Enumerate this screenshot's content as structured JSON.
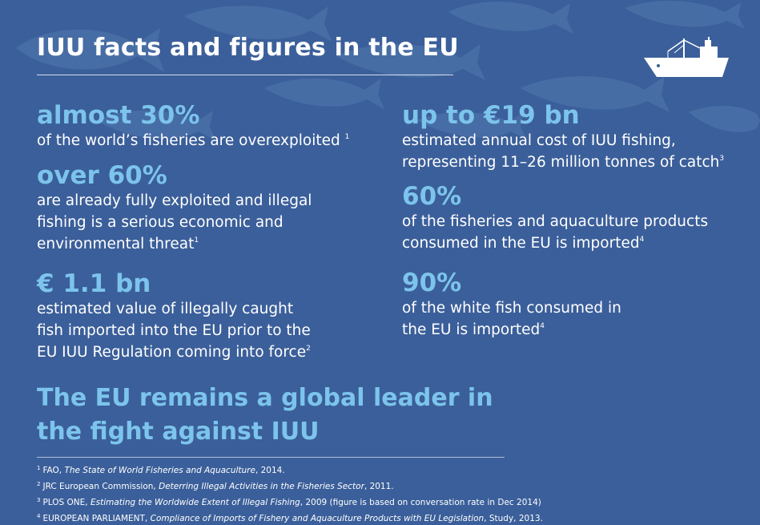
{
  "title": "IUU facts and figures in the EU",
  "colors": {
    "background": "#3b5f9a",
    "accent": "#7cc4ec",
    "text": "#ffffff"
  },
  "left_facts": [
    {
      "value": "almost 30%",
      "text": "of the world’s fisheries are overexploited",
      "ref": "1"
    },
    {
      "value": "over 60%",
      "text_lines": [
        "are already fully exploited and illegal",
        "fishing is a serious economic and",
        "environmental threat"
      ],
      "ref": "1"
    },
    {
      "value": "€ 1.1 bn",
      "text_lines": [
        "estimated value of illegally caught",
        "fish imported into the EU prior to the",
        "EU IUU Regulation coming into force"
      ],
      "ref": "2"
    }
  ],
  "right_facts": [
    {
      "value": "up to €19 bn",
      "text_lines": [
        "estimated annual cost of IUU fishing,",
        "representing 11–26 million tonnes of catch"
      ],
      "ref": "3"
    },
    {
      "value": "60%",
      "text_lines": [
        "of the fisheries and aquaculture products",
        "consumed in the EU is imported"
      ],
      "ref": "4"
    },
    {
      "value": "90%",
      "text_lines": [
        "of the white fish consumed in",
        "the EU is imported"
      ],
      "ref": "4"
    }
  ],
  "leader_lines": [
    "The EU remains a global leader in",
    "the fight against IUU"
  ],
  "footnotes": [
    {
      "num": "1",
      "pre": "FAO, ",
      "italic": "The State of World Fisheries and Aquaculture",
      "post": ", 2014."
    },
    {
      "num": "2",
      "pre": "JRC European Commission, ",
      "italic": "Deterring Illegal Activities in the Fisheries Sector",
      "post": ", 2011."
    },
    {
      "num": "3",
      "pre": "PLOS ONE, ",
      "italic": "Estimating the Worldwide Extent of Illegal Fishing",
      "post": ", 2009 (figure is based on conversation rate in Dec 2014)"
    },
    {
      "num": "4",
      "pre": "EUROPEAN PARLIAMENT, ",
      "italic": "Compliance of Imports of Fishery and Aquaculture Products with EU Legislation",
      "post": ", Study,  2013."
    }
  ],
  "icons": {
    "ship": "fishing-ship-icon",
    "background": "fish-silhouettes"
  }
}
